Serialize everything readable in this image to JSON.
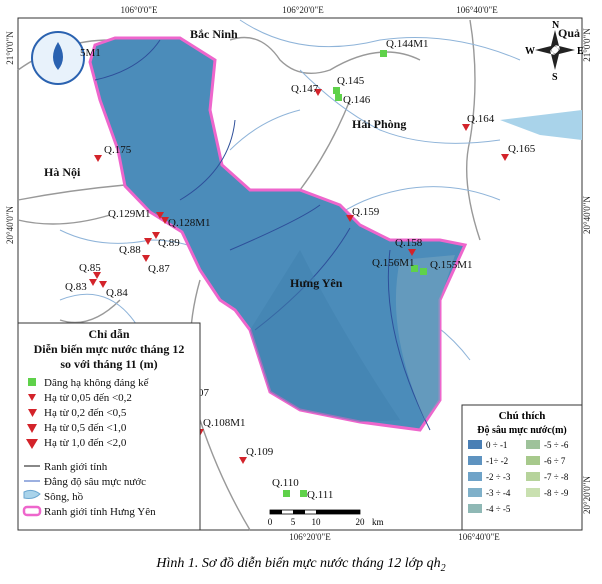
{
  "coordinates": {
    "top": [
      "106°0'0\"E",
      "106°20'0\"E",
      "106°40'0\"E"
    ],
    "bottom": [
      "106°20'0\"E",
      "106°40'0\"E"
    ],
    "left": [
      "21°0'0\"N",
      "20°40'0\"N"
    ],
    "right": [
      "21°0'0\"N",
      "20°40'0\"N",
      "20°20'0\"N"
    ]
  },
  "places": [
    "Bắc Ninh",
    "Hà Nội",
    "Hải Phòng",
    "Hưng Yên",
    "Quả"
  ],
  "wells_stable": [
    "Q.144M1",
    "Q.145",
    "Q.146",
    "Q.156M1",
    "Q.155M1",
    "Q.110",
    "Q.111"
  ],
  "wells_declining": [
    "Q.147",
    "Q.164",
    "Q.165",
    "Q.175",
    "Q.129M1",
    "Q.128M1",
    "Q.159",
    "Q.88",
    "Q.89",
    "Q.87",
    "Q.85",
    "Q.83",
    "Q.84",
    "Q.158",
    "Q.108M1",
    "Q.109"
  ],
  "fragments": [
    "5M1",
    "07"
  ],
  "compass": [
    "N",
    "S",
    "E",
    "W"
  ],
  "legend": {
    "title": "Chỉ dẫn",
    "subtitle1": "Diễn biến mực nước tháng 12",
    "subtitle2": "so với tháng 11 (m)",
    "items": [
      "Dâng hạ không đáng kể",
      "Hạ từ 0,05 đến <0,2",
      "Hạ từ 0,2 đến <0,5",
      "Hạ từ 0,5 đến <1,0",
      "Hạ từ 1,0 đến <2,0",
      "Ranh giới tỉnh",
      "Đẳng độ sâu mực nước",
      "Sông, hồ",
      "Ranh giới tỉnh Hưng Yên"
    ]
  },
  "depth_legend": {
    "title": "Chú thích",
    "heading": "Độ sâu mực nước(m)",
    "classes": [
      "0 ÷ -1",
      "-1÷ -2",
      "-2 ÷ -3",
      "-3 ÷ -4",
      "-4 ÷ -5",
      "-5 ÷ -6",
      "-6 ÷ 7",
      "-7 ÷ -8",
      "-8 ÷ -9"
    ]
  },
  "scale": {
    "ticks": [
      0,
      5,
      10,
      20
    ],
    "unit": "km"
  },
  "caption": {
    "main": "Hình 1. Sơ đồ diễn biến mực nước tháng 12 lớp qh",
    "sub": "2"
  }
}
